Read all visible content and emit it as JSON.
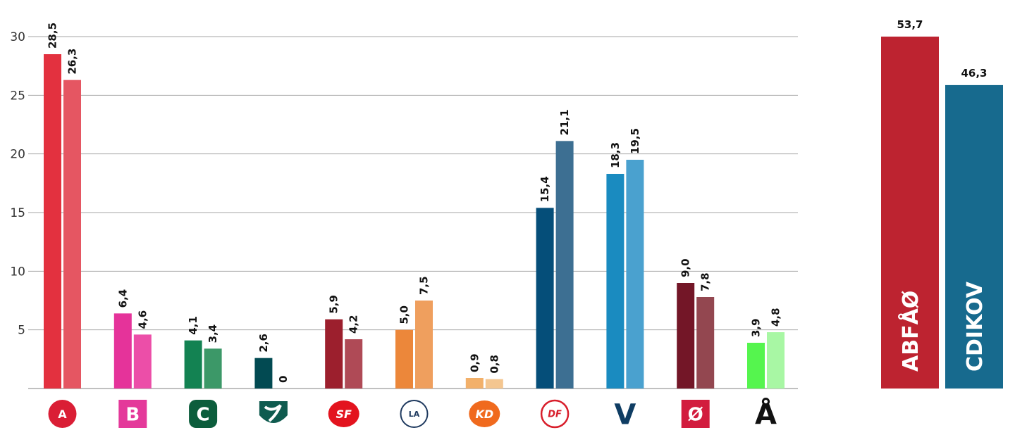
{
  "chart_data": [
    {
      "type": "bar",
      "categories": [
        "A",
        "B",
        "C",
        "K",
        "SF",
        "LA",
        "KD",
        "DF",
        "V",
        "Ø",
        "Å"
      ],
      "series": [
        {
          "values": [
            28.5,
            6.4,
            4.1,
            2.6,
            5.9,
            5.0,
            0.9,
            15.4,
            18.3,
            9.0,
            3.9
          ],
          "labels": [
            "28,5",
            "6,4",
            "4,1",
            "2,6",
            "5,9",
            "5,0",
            "0,9",
            "15,4",
            "18,3",
            "9,0",
            "3,9"
          ]
        },
        {
          "values": [
            26.3,
            4.6,
            3.4,
            0,
            4.2,
            7.5,
            0.8,
            21.1,
            19.5,
            7.8,
            4.8
          ],
          "labels": [
            "26,3",
            "4,6",
            "3,4",
            "0",
            "4,2",
            "7,5",
            "0,8",
            "21,1",
            "19,5",
            "7,8",
            "4,8"
          ]
        }
      ],
      "colors": [
        [
          "#E3313F",
          "#E55662"
        ],
        [
          "#E5339A",
          "#EC4EA8"
        ],
        [
          "#138252",
          "#3C9868"
        ],
        [
          "#024A52",
          "#2B6A70"
        ],
        [
          "#9C1F2D",
          "#AF4A56"
        ],
        [
          "#EC873A",
          "#EF9F5E"
        ],
        [
          "#F2B06A",
          "#F4C690"
        ],
        [
          "#054E79",
          "#3D6F92"
        ],
        [
          "#1A8BC0",
          "#4AA1CF"
        ],
        [
          "#731627",
          "#934750"
        ],
        [
          "#55F54E",
          "#A8F7A4"
        ]
      ],
      "yticks": [
        5,
        10,
        15,
        20,
        25,
        30
      ],
      "ytick_labels": [
        "5",
        "10",
        "15",
        "20",
        "25",
        "30"
      ],
      "ylim": [
        0,
        30
      ],
      "grid": true
    },
    {
      "type": "bar",
      "categories": [
        "ABFÅØ",
        "CDIKOV"
      ],
      "values": [
        53.7,
        46.3
      ],
      "labels": [
        "53,7",
        "46,3"
      ],
      "colors": [
        "#BD2330",
        "#176A8E"
      ]
    }
  ],
  "logos": [
    {
      "name": "a-logo",
      "text": "A",
      "shape": "circle",
      "bg": "#DA1E35",
      "fg": "#ffffff"
    },
    {
      "name": "b-logo",
      "text": "B",
      "shape": "square",
      "bg": "#E4399A",
      "fg": "#ffffff"
    },
    {
      "name": "c-logo",
      "text": "C",
      "shape": "rounded",
      "bg": "#0C5D3C",
      "fg": "#ffffff"
    },
    {
      "name": "k-logo",
      "text": "",
      "shape": "shield",
      "bg": "#0F5B4F",
      "fg": "#ffffff"
    },
    {
      "name": "sf-logo",
      "text": "SF",
      "shape": "blob",
      "bg": "#E3131E",
      "fg": "#ffffff"
    },
    {
      "name": "la-logo",
      "text": "LA",
      "shape": "ring",
      "bg": "#ffffff",
      "fg": "#1F3A5F"
    },
    {
      "name": "kd-logo",
      "text": "KD",
      "shape": "blob",
      "bg": "#F06A1E",
      "fg": "#ffffff"
    },
    {
      "name": "df-logo",
      "text": "DF",
      "shape": "ring-red",
      "bg": "#ffffff",
      "fg": "#D81E2B"
    },
    {
      "name": "v-logo",
      "text": "V",
      "shape": "letter",
      "bg": "none",
      "fg": "#0F3D63"
    },
    {
      "name": "oe-logo",
      "text": "Ø",
      "shape": "square",
      "bg": "#D21C3E",
      "fg": "#ffffff"
    },
    {
      "name": "aa-logo",
      "text": "Å",
      "shape": "letter",
      "bg": "none",
      "fg": "#111111"
    }
  ]
}
